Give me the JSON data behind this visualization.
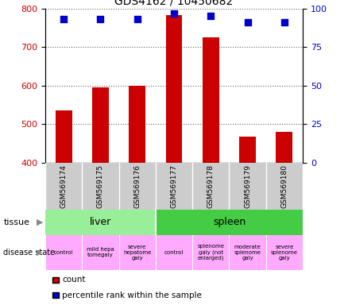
{
  "title": "GDS4162 / 10450682",
  "samples": [
    "GSM569174",
    "GSM569175",
    "GSM569176",
    "GSM569177",
    "GSM569178",
    "GSM569179",
    "GSM569180"
  ],
  "counts": [
    535,
    595,
    600,
    783,
    726,
    468,
    480
  ],
  "percentile_ranks": [
    93,
    93,
    93,
    97,
    95,
    91,
    91
  ],
  "ylim_left": [
    400,
    800
  ],
  "ylim_right": [
    0,
    100
  ],
  "yticks_left": [
    400,
    500,
    600,
    700,
    800
  ],
  "yticks_right": [
    0,
    25,
    50,
    75,
    100
  ],
  "bar_color": "#cc0000",
  "dot_color": "#0000cc",
  "liver_color": "#99ee99",
  "spleen_color": "#44cc44",
  "sample_bg_color": "#cccccc",
  "disease_color": "#ffaaff",
  "left_axis_color": "#cc0000",
  "right_axis_color": "#0000cc",
  "tissue_row": [
    {
      "text": "liver",
      "start": 0,
      "end": 3
    },
    {
      "text": "spleen",
      "start": 3,
      "end": 7
    }
  ],
  "disease_texts": [
    "control",
    "mild hepa\ntomegaly",
    "severe\nhepatome\ngaly",
    "control",
    "splenome\ngaly (not\nenlarged)",
    "moderate\nsplenome\ngaly",
    "severe\nsplenome\ngaly"
  ]
}
